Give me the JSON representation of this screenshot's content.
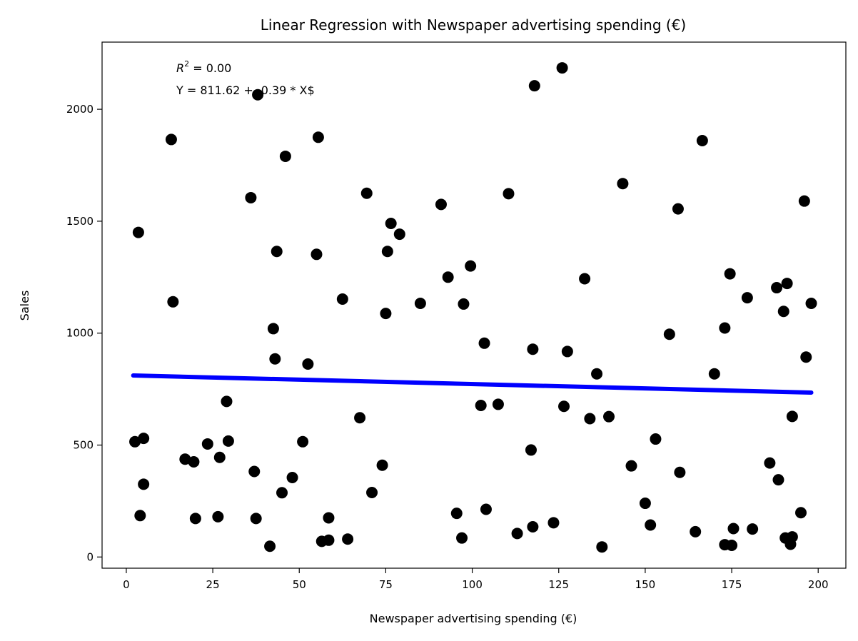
{
  "chart_data": {
    "type": "scatter",
    "title": "Linear Regression with Newspaper advertising spending (€)",
    "xlabel": "Newspaper advertising spending (€)",
    "ylabel": "Sales",
    "xlim": [
      -7,
      208
    ],
    "ylim": [
      -50,
      2300
    ],
    "xticks": [
      0,
      25,
      50,
      75,
      100,
      125,
      150,
      175,
      200
    ],
    "yticks": [
      0,
      500,
      1000,
      1500,
      2000
    ],
    "grid": false,
    "annotation": {
      "r2_symbol": "R",
      "r2_sup": "2",
      "r2_value": " = 0.00",
      "equation": "Y = 811.62 + -0.39 * X$"
    },
    "regression": {
      "intercept": 811.62,
      "slope": -0.39,
      "x_range": [
        2,
        198
      ],
      "color": "#0000ff"
    },
    "point_color": "#000000",
    "points": [
      [
        2.5,
        515
      ],
      [
        3.5,
        1450
      ],
      [
        4,
        185
      ],
      [
        5,
        325
      ],
      [
        5,
        530
      ],
      [
        13,
        1865
      ],
      [
        13.5,
        1140
      ],
      [
        17,
        437
      ],
      [
        19.5,
        425
      ],
      [
        20,
        172
      ],
      [
        23.5,
        505
      ],
      [
        26.5,
        180
      ],
      [
        27,
        445
      ],
      [
        29,
        695
      ],
      [
        29.5,
        518
      ],
      [
        36,
        1605
      ],
      [
        37,
        382
      ],
      [
        37.5,
        172
      ],
      [
        38,
        2065
      ],
      [
        41.5,
        48
      ],
      [
        42.5,
        1020
      ],
      [
        43,
        885
      ],
      [
        43.5,
        1365
      ],
      [
        45,
        287
      ],
      [
        46,
        1790
      ],
      [
        48,
        355
      ],
      [
        51,
        515
      ],
      [
        52.5,
        862
      ],
      [
        55,
        1352
      ],
      [
        55.5,
        1875
      ],
      [
        56.5,
        70
      ],
      [
        58.5,
        75
      ],
      [
        58.5,
        175
      ],
      [
        62.5,
        1152
      ],
      [
        64,
        80
      ],
      [
        67.5,
        622
      ],
      [
        69.5,
        1625
      ],
      [
        71,
        288
      ],
      [
        74,
        410
      ],
      [
        75,
        1088
      ],
      [
        75.5,
        1365
      ],
      [
        76.5,
        1490
      ],
      [
        79,
        1442
      ],
      [
        85,
        1133
      ],
      [
        91,
        1575
      ],
      [
        93,
        1250
      ],
      [
        95.5,
        195
      ],
      [
        97,
        85
      ],
      [
        97.5,
        1130
      ],
      [
        99.5,
        1300
      ],
      [
        102.5,
        677
      ],
      [
        103.5,
        955
      ],
      [
        104,
        213
      ],
      [
        107.5,
        682
      ],
      [
        110.5,
        1623
      ],
      [
        113,
        105
      ],
      [
        117,
        478
      ],
      [
        117.5,
        928
      ],
      [
        117.5,
        135
      ],
      [
        118,
        2105
      ],
      [
        123.5,
        153
      ],
      [
        126,
        2185
      ],
      [
        126.5,
        673
      ],
      [
        127.5,
        918
      ],
      [
        132.5,
        1243
      ],
      [
        134,
        618
      ],
      [
        136,
        818
      ],
      [
        137.5,
        45
      ],
      [
        139.5,
        627
      ],
      [
        143.5,
        1668
      ],
      [
        146,
        407
      ],
      [
        150,
        240
      ],
      [
        151.5,
        143
      ],
      [
        153,
        527
      ],
      [
        157,
        995
      ],
      [
        159.5,
        1555
      ],
      [
        160,
        378
      ],
      [
        164.5,
        113
      ],
      [
        166.5,
        1860
      ],
      [
        170,
        818
      ],
      [
        173,
        55
      ],
      [
        173,
        1023
      ],
      [
        174.5,
        1265
      ],
      [
        175,
        52
      ],
      [
        175.5,
        127
      ],
      [
        179.5,
        1158
      ],
      [
        181,
        125
      ],
      [
        186,
        420
      ],
      [
        188,
        1203
      ],
      [
        188.5,
        345
      ],
      [
        190,
        1097
      ],
      [
        190.5,
        85
      ],
      [
        191,
        1222
      ],
      [
        192,
        57
      ],
      [
        192.5,
        628
      ],
      [
        192.5,
        90
      ],
      [
        195,
        198
      ],
      [
        196,
        1590
      ],
      [
        196.5,
        893
      ],
      [
        198,
        1133
      ]
    ]
  }
}
